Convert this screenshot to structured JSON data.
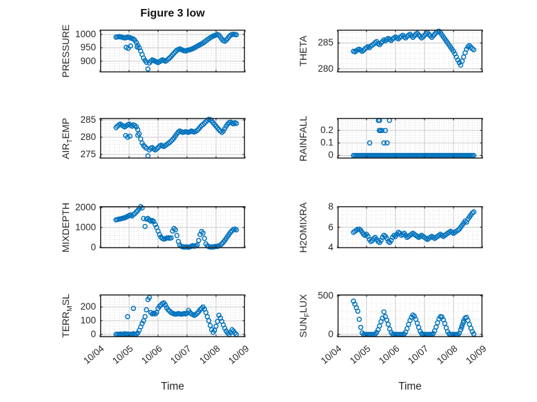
{
  "figure": {
    "title": "Figure 3 low",
    "xlabel": "Time",
    "xtick_labels": [
      "10/04",
      "10/05",
      "10/06",
      "10/07",
      "10/08",
      "10/09"
    ],
    "marker_color": "#0072BD",
    "axis_color": "#262626",
    "grid_color": "#c9c9c9",
    "minor_grid_color": "#d6d6d6",
    "background": "#ffffff"
  },
  "chart_data": {
    "type": "scatter",
    "marker": "open-circle",
    "x_unit": "days since 10/04",
    "xlim": [
      0,
      5
    ],
    "xtick_days": [
      0,
      1,
      2,
      3,
      4,
      5
    ],
    "xtick_labels": [
      "10/04",
      "10/05",
      "10/06",
      "10/07",
      "10/08",
      "10/09"
    ],
    "x": [
      0.55,
      0.6,
      0.65,
      0.7,
      0.75,
      0.8,
      0.85,
      0.9,
      0.95,
      1.0,
      1.05,
      1.1,
      1.15,
      1.2,
      1.25,
      1.3,
      1.35,
      1.4,
      1.45,
      1.5,
      1.55,
      1.6,
      1.65,
      1.7,
      1.75,
      1.8,
      1.85,
      1.9,
      1.95,
      2.0,
      2.05,
      2.1,
      2.15,
      2.2,
      2.25,
      2.3,
      2.35,
      2.4,
      2.45,
      2.5,
      2.55,
      2.6,
      2.65,
      2.7,
      2.75,
      2.8,
      2.85,
      2.9,
      2.95,
      3.0,
      3.05,
      3.1,
      3.15,
      3.2,
      3.25,
      3.3,
      3.35,
      3.4,
      3.45,
      3.5,
      3.55,
      3.6,
      3.65,
      3.7,
      3.75,
      3.8,
      3.85,
      3.9,
      3.95,
      4.0,
      4.05,
      4.1,
      4.15,
      4.2,
      4.25,
      4.3,
      4.35,
      4.4,
      4.45,
      4.5,
      4.55,
      4.6,
      4.65,
      4.7
    ],
    "subplots": [
      {
        "id": "pressure",
        "ylabel": {
          "pre": "PRESSURE",
          "sub": "",
          "post": ""
        },
        "yticks": [
          900,
          950,
          1000
        ],
        "ytick_labels": [
          "900",
          "950",
          "1000"
        ],
        "ylim": [
          858,
          1018
        ],
        "y": [
          990,
          991,
          992,
          991,
          990,
          988,
          987,
          988,
          990,
          989,
          987,
          985,
          983,
          978,
          970,
          960,
          950,
          938,
          925,
          912,
          903,
          896,
          871,
          893,
          900,
          905,
          903,
          900,
          897,
          895,
          898,
          902,
          905,
          903,
          900,
          903,
          908,
          912,
          918,
          924,
          930,
          936,
          941,
          944,
          946,
          944,
          941,
          939,
          938,
          940,
          942,
          943,
          945,
          947,
          950,
          953,
          956,
          959,
          962,
          965,
          968,
          972,
          976,
          980,
          984,
          988,
          991,
          994,
          996,
          998,
          1000,
          997,
          990,
          983,
          977,
          975,
          979,
          985,
          992,
          997,
          1000,
          1001,
          1000,
          999
        ],
        "extra_points": [
          [
            0.9,
            952
          ],
          [
            0.97,
            948
          ],
          [
            1.05,
            957
          ],
          [
            1.28,
            953
          ]
        ]
      },
      {
        "id": "theta",
        "ylabel": {
          "pre": "THETA",
          "sub": "",
          "post": ""
        },
        "yticks": [
          280,
          285
        ],
        "ytick_labels": [
          "280",
          "285"
        ],
        "ylim": [
          279.3,
          287.6
        ],
        "y": [
          283.4,
          283.3,
          283.5,
          283.7,
          283.8,
          283.6,
          283.4,
          283.6,
          283.9,
          284.1,
          284.3,
          284.1,
          284.4,
          284.6,
          284.8,
          285.1,
          285.3,
          284.9,
          284.7,
          285.0,
          285.3,
          285.6,
          285.4,
          285.7,
          285.9,
          285.7,
          285.5,
          285.8,
          286.0,
          286.2,
          286.0,
          285.8,
          286.1,
          286.3,
          286.5,
          286.2,
          286.0,
          286.3,
          286.5,
          286.7,
          286.4,
          286.1,
          286.4,
          286.7,
          286.9,
          286.6,
          286.3,
          286.0,
          286.2,
          286.5,
          286.8,
          287.0,
          286.7,
          286.4,
          286.1,
          286.4,
          286.7,
          287.0,
          287.2,
          287.3,
          287.0,
          286.6,
          286.2,
          285.8,
          285.4,
          285.0,
          284.6,
          284.2,
          283.8,
          283.4,
          282.9,
          282.3,
          281.7,
          281.2,
          280.7,
          281.5,
          282.3,
          283.1,
          283.8,
          284.3,
          284.5,
          284.2,
          283.9,
          283.7
        ],
        "extra_points": []
      },
      {
        "id": "air_temp",
        "ylabel": {
          "pre": "AIR",
          "sub": "T",
          "post": "EMP"
        },
        "yticks": [
          275,
          280,
          285
        ],
        "ytick_labels": [
          "275",
          "280",
          "285"
        ],
        "ylim": [
          273.8,
          285.6
        ],
        "y": [
          282.8,
          283.2,
          283.6,
          283.8,
          283.5,
          283.2,
          283.0,
          283.3,
          283.6,
          283.8,
          283.5,
          283.2,
          283.6,
          283.4,
          283.0,
          282.2,
          281.0,
          279.5,
          278.3,
          277.6,
          277.2,
          276.8,
          274.6,
          276.3,
          276.8,
          277.0,
          276.6,
          276.3,
          276.6,
          277.0,
          277.4,
          277.7,
          277.5,
          277.3,
          277.6,
          277.9,
          278.2,
          278.5,
          278.9,
          279.3,
          279.8,
          280.4,
          281.0,
          281.5,
          281.8,
          281.6,
          281.4,
          281.5,
          281.6,
          281.5,
          281.4,
          281.6,
          281.8,
          281.6,
          281.5,
          281.7,
          282.0,
          282.4,
          282.9,
          283.4,
          283.7,
          284.1,
          284.5,
          284.9,
          285.2,
          285.1,
          284.7,
          284.2,
          283.7,
          283.2,
          282.7,
          282.2,
          281.8,
          281.4,
          281.8,
          282.5,
          283.2,
          283.8,
          284.2,
          284.4,
          284.1,
          283.9,
          284.2,
          284.0
        ],
        "extra_points": [
          [
            0.88,
            280.5
          ],
          [
            0.95,
            280.0
          ],
          [
            1.03,
            280.3
          ],
          [
            1.3,
            280.6
          ]
        ]
      },
      {
        "id": "rainfall",
        "ylabel": {
          "pre": "RAINFALL",
          "sub": "",
          "post": ""
        },
        "yticks": [
          0,
          0.1,
          0.2
        ],
        "ytick_labels": [
          "0",
          "0.1",
          "0.2"
        ],
        "ylim": [
          -0.025,
          0.3
        ],
        "y": [
          0,
          0,
          0,
          0,
          0,
          0,
          0,
          0,
          0,
          0,
          0,
          0,
          0,
          0,
          0,
          0,
          0,
          0,
          0,
          0,
          0,
          0,
          0,
          0,
          0,
          0,
          0,
          0,
          0,
          0,
          0,
          0,
          0,
          0,
          0,
          0,
          0,
          0,
          0,
          0,
          0,
          0,
          0,
          0,
          0,
          0,
          0,
          0,
          0,
          0,
          0,
          0,
          0,
          0,
          0,
          0,
          0,
          0,
          0,
          0,
          0,
          0,
          0,
          0,
          0,
          0,
          0,
          0,
          0,
          0,
          0,
          0,
          0,
          0,
          0,
          0,
          0,
          0,
          0,
          0,
          0,
          0,
          0,
          0
        ],
        "extra_points": [
          [
            1.11,
            0.1
          ],
          [
            1.6,
            0.1
          ],
          [
            1.71,
            0.1
          ],
          [
            1.44,
            0.2
          ],
          [
            1.48,
            0.2
          ],
          [
            1.53,
            0.2
          ],
          [
            1.65,
            0.2
          ],
          [
            1.41,
            0.28
          ],
          [
            1.45,
            0.28
          ],
          [
            1.79,
            0.28
          ]
        ]
      },
      {
        "id": "mixdepth",
        "ylabel": {
          "pre": "MIXDEPTH",
          "sub": "",
          "post": ""
        },
        "yticks": [
          0,
          1000,
          2000
        ],
        "ytick_labels": [
          "0",
          "1000",
          "2000"
        ],
        "ylim": [
          -40,
          2070
        ],
        "y": [
          1380,
          1400,
          1420,
          1430,
          1450,
          1470,
          1490,
          1520,
          1560,
          1600,
          1630,
          1580,
          1650,
          1700,
          1780,
          1850,
          1950,
          2050,
          1980,
          1450,
          1050,
          1420,
          1450,
          1380,
          1320,
          1350,
          1300,
          1150,
          1000,
          820,
          650,
          520,
          450,
          420,
          440,
          470,
          490,
          460,
          480,
          820,
          950,
          880,
          600,
          300,
          120,
          60,
          30,
          20,
          30,
          20,
          10,
          30,
          60,
          90,
          60,
          80,
          120,
          350,
          650,
          800,
          720,
          450,
          180,
          80,
          40,
          20,
          30,
          20,
          40,
          60,
          50,
          80,
          120,
          180,
          260,
          350,
          450,
          560,
          660,
          760,
          840,
          900,
          920,
          880
        ],
        "extra_points": []
      },
      {
        "id": "h2omixra",
        "ylabel": {
          "pre": "H2OMIXRA",
          "sub": "",
          "post": ""
        },
        "yticks": [
          4,
          6,
          8
        ],
        "ytick_labels": [
          "4",
          "6",
          "8"
        ],
        "ylim": [
          3.93,
          8.07
        ],
        "y": [
          5.5,
          5.6,
          5.7,
          5.8,
          5.8,
          5.7,
          5.5,
          5.3,
          5.2,
          5.3,
          5.1,
          4.8,
          4.6,
          4.7,
          4.9,
          5.0,
          4.8,
          4.6,
          4.5,
          4.7,
          5.0,
          5.2,
          5.1,
          4.9,
          4.6,
          4.5,
          4.7,
          5.0,
          5.2,
          5.1,
          5.3,
          5.5,
          5.4,
          5.2,
          5.3,
          5.4,
          5.2,
          5.0,
          5.1,
          5.2,
          5.3,
          5.4,
          5.3,
          5.2,
          5.1,
          5.0,
          5.1,
          5.2,
          5.1,
          5.0,
          4.9,
          4.8,
          4.9,
          5.0,
          5.1,
          5.0,
          4.9,
          5.0,
          5.1,
          5.2,
          5.3,
          5.2,
          5.1,
          5.2,
          5.3,
          5.4,
          5.5,
          5.6,
          5.5,
          5.4,
          5.5,
          5.6,
          5.7,
          5.8,
          6.0,
          6.2,
          6.4,
          6.6,
          6.5,
          6.8,
          7.0,
          7.2,
          7.4,
          7.5
        ],
        "extra_points": []
      },
      {
        "id": "terr_msl",
        "ylabel": {
          "pre": "TERR",
          "sub": "M",
          "post": "SL"
        },
        "yticks": [
          0,
          100,
          200
        ],
        "ytick_labels": [
          "0",
          "100",
          "200"
        ],
        "ylim": [
          -20,
          292
        ],
        "y": [
          0,
          2,
          0,
          3,
          0,
          2,
          5,
          0,
          3,
          0,
          2,
          0,
          5,
          0,
          3,
          10,
          30,
          55,
          80,
          100,
          130,
          180,
          255,
          270,
          160,
          150,
          155,
          150,
          160,
          190,
          205,
          215,
          225,
          230,
          215,
          195,
          180,
          170,
          160,
          155,
          150,
          148,
          150,
          152,
          150,
          148,
          150,
          152,
          150,
          155,
          175,
          160,
          150,
          145,
          140,
          145,
          155,
          165,
          180,
          190,
          200,
          185,
          160,
          130,
          100,
          65,
          35,
          15,
          30,
          60,
          95,
          140,
          120,
          95,
          70,
          45,
          25,
          10,
          0,
          15,
          35,
          25,
          10,
          0
        ],
        "extra_points": [
          [
            0.95,
            130
          ],
          [
            1.15,
            190
          ]
        ]
      },
      {
        "id": "sun_flux",
        "ylabel": {
          "pre": "SUN",
          "sub": "F",
          "post": "LUX"
        },
        "yticks": [
          0,
          500
        ],
        "ytick_labels": [
          "0",
          "500"
        ],
        "ylim": [
          -36,
          516
        ],
        "y": [
          430,
          390,
          345,
          300,
          195,
          90,
          20,
          0,
          0,
          0,
          0,
          0,
          0,
          0,
          0,
          5,
          25,
          60,
          110,
          165,
          210,
          290,
          230,
          185,
          130,
          70,
          25,
          5,
          0,
          0,
          0,
          0,
          0,
          0,
          0,
          5,
          30,
          75,
          130,
          180,
          220,
          250,
          235,
          195,
          145,
          90,
          40,
          10,
          0,
          0,
          0,
          0,
          0,
          0,
          0,
          10,
          45,
          95,
          150,
          200,
          230,
          225,
          190,
          140,
          85,
          35,
          8,
          0,
          0,
          0,
          0,
          0,
          0,
          15,
          60,
          120,
          175,
          210,
          220,
          180,
          130,
          80,
          35,
          5
        ],
        "extra_points": [
          [
            4.28,
            90
          ],
          [
            4.34,
            150
          ]
        ]
      }
    ]
  }
}
